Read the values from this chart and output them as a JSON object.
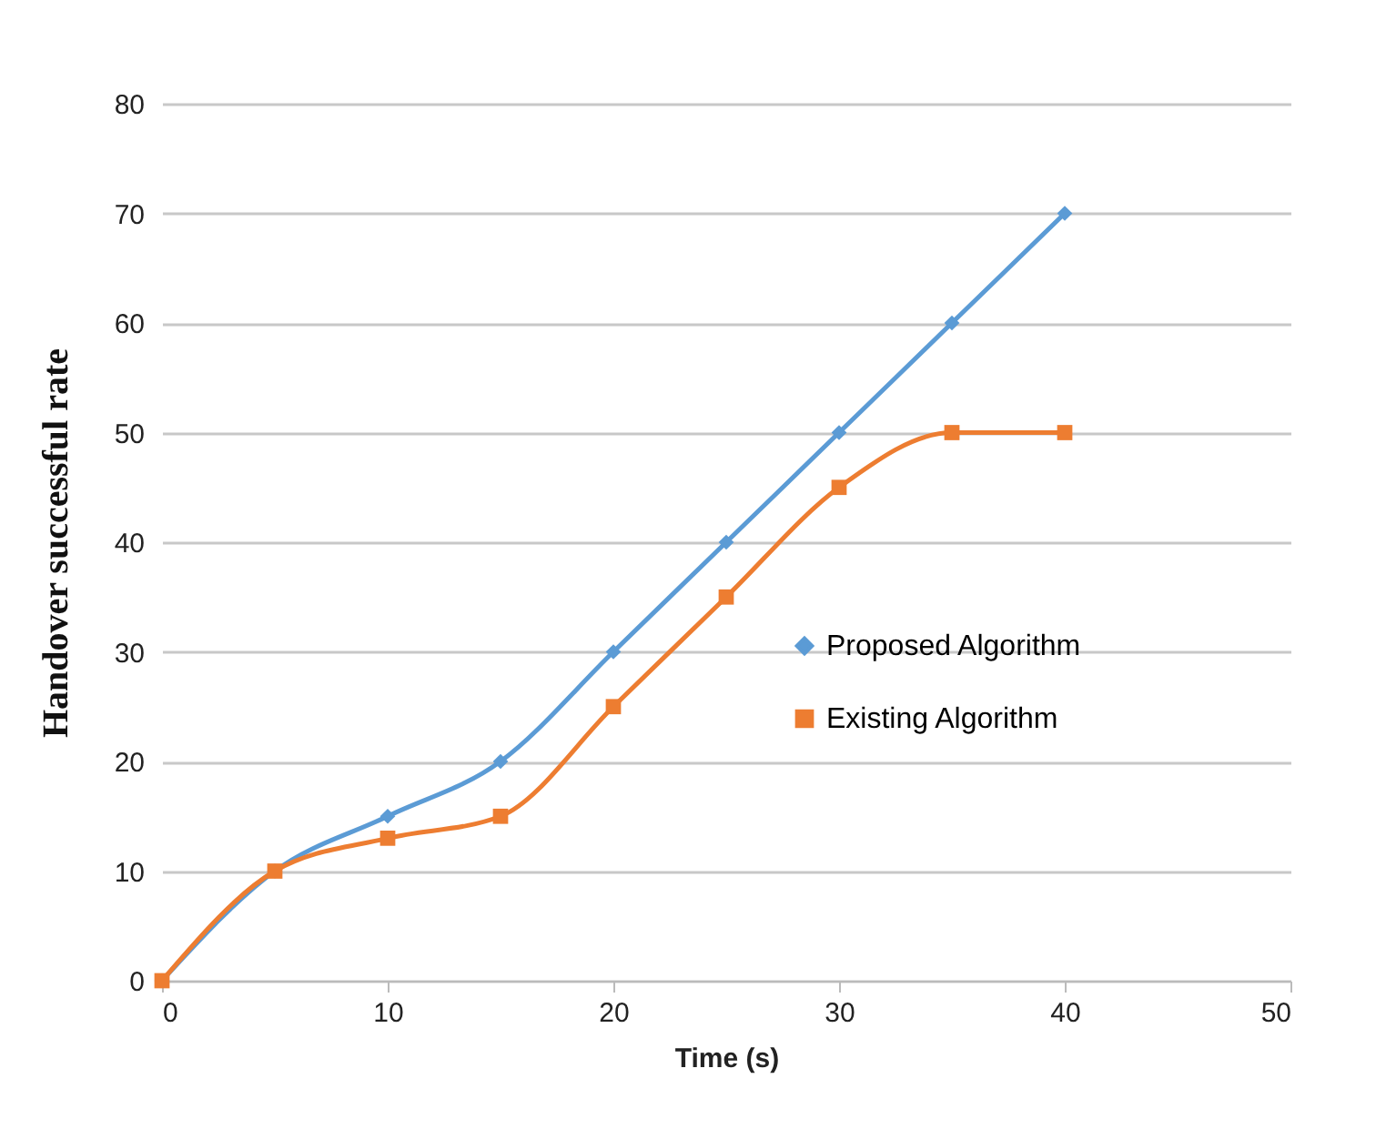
{
  "chart_data": {
    "type": "line",
    "xlabel": "Time (s)",
    "ylabel": "Handover  successful rate",
    "x": [
      0,
      5,
      10,
      15,
      20,
      25,
      30,
      35,
      40
    ],
    "series": [
      {
        "name": "Proposed Algorithm",
        "color": "#5b9bd5",
        "marker": "diamond",
        "values": [
          0,
          10,
          15,
          20,
          30,
          40,
          50,
          60,
          70
        ]
      },
      {
        "name": "Existing Algorithm",
        "color": "#ed7d31",
        "marker": "square",
        "values": [
          0,
          10,
          13,
          15,
          25,
          35,
          45,
          50,
          50
        ]
      }
    ],
    "xlim": [
      0,
      50
    ],
    "xticks": [
      0,
      10,
      20,
      30,
      40,
      50
    ],
    "ylim": [
      0,
      80
    ],
    "yticks": [
      0,
      10,
      20,
      30,
      40,
      50,
      60,
      70,
      80
    ],
    "grid": "y",
    "legend": "right",
    "line_style": "solid"
  }
}
